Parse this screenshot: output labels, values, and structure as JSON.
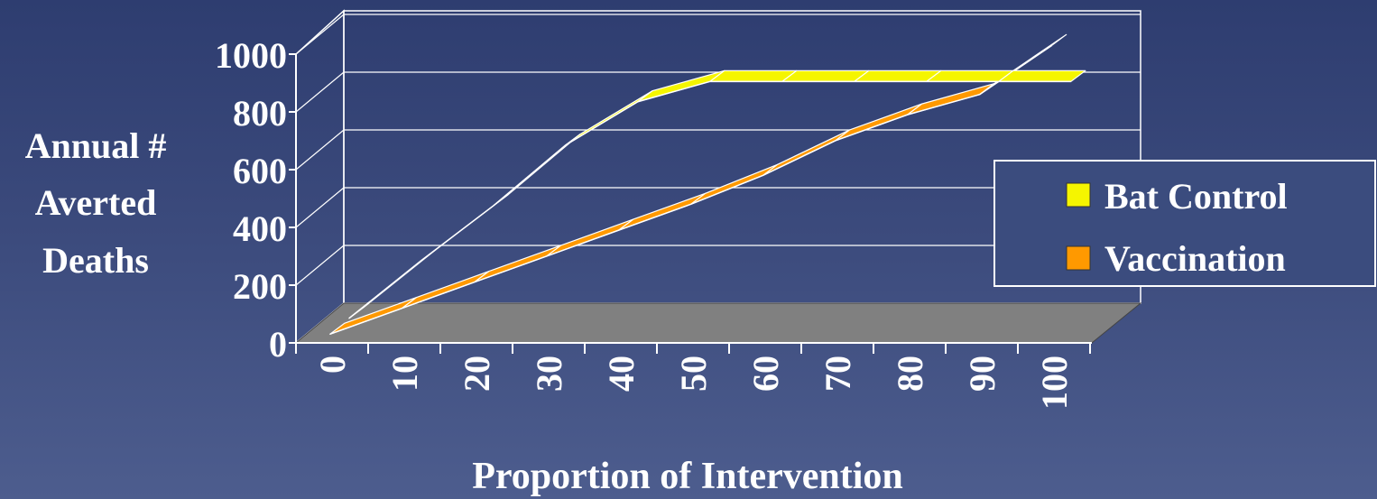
{
  "chart_data": {
    "type": "line",
    "style": "3d-ribbon",
    "xlabel": "Proportion of Intervention",
    "ylabel_lines": [
      "Annual #",
      "Averted",
      "Deaths"
    ],
    "categories": [
      "0",
      "10",
      "20",
      "30",
      "40",
      "50",
      "60",
      "70",
      "80",
      "90",
      "100"
    ],
    "y_ticks": [
      "0",
      "200",
      "400",
      "600",
      "800",
      "1000"
    ],
    "ylim": [
      0,
      1000
    ],
    "grid": true,
    "legend_position": "right",
    "series": [
      {
        "name": "Bat Control",
        "color": "#f5f500",
        "values": [
          0,
          200,
          390,
          600,
          750,
          820,
          820,
          820,
          820,
          820,
          820
        ]
      },
      {
        "name": "Vaccination",
        "color": "#ff9900",
        "values": [
          0,
          90,
          180,
          270,
          360,
          450,
          550,
          670,
          760,
          830,
          1000
        ]
      }
    ]
  }
}
